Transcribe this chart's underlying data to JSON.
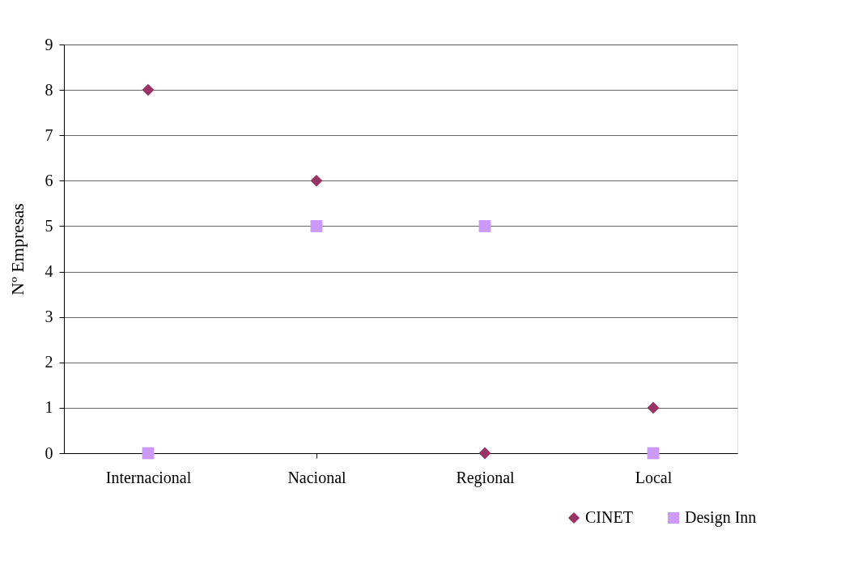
{
  "chart_data": {
    "type": "scatter",
    "ylabel": "Nº Empresas",
    "categories": [
      "Internacional",
      "Nacional",
      "Regional",
      "Local"
    ],
    "series": [
      {
        "name": "CINET",
        "color": "#993366",
        "marker": "diamond",
        "values": [
          8,
          6,
          0,
          1
        ]
      },
      {
        "name": "Design Inn",
        "color": "#cc99ff",
        "marker": "square",
        "values": [
          0,
          5,
          5,
          0
        ]
      }
    ],
    "ylim": [
      0,
      9
    ],
    "yticks": [
      0,
      1,
      2,
      3,
      4,
      5,
      6,
      7,
      8,
      9
    ],
    "grid": "y",
    "legend": "bottom right"
  }
}
